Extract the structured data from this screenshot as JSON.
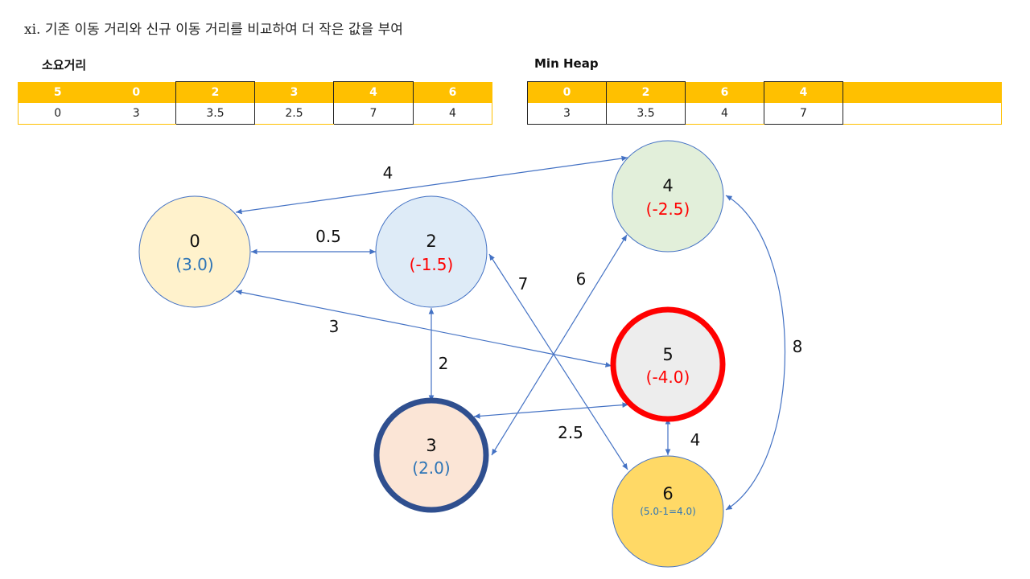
{
  "title": "xi.  기존 이동 거리와 신규 이동 거리를 비교하여 더 작은 값을 부여",
  "distance_table": {
    "label": "소요거리",
    "columns": [
      "5",
      "0",
      "2",
      "3",
      "4",
      "6"
    ],
    "values": [
      "0",
      "3",
      "3.5",
      "2.5",
      "7",
      "4"
    ]
  },
  "heap_table": {
    "label": "Min Heap",
    "columns": [
      "0",
      "2",
      "6",
      "4",
      ""
    ],
    "values": [
      "3",
      "3.5",
      "4",
      "7",
      ""
    ]
  },
  "nodes": {
    "n0": {
      "id": "0",
      "value": "(3.0)"
    },
    "n2": {
      "id": "2",
      "value": "(-1.5)"
    },
    "n4": {
      "id": "4",
      "value": "(-2.5)"
    },
    "n5": {
      "id": "5",
      "value": "(-4.0)"
    },
    "n3": {
      "id": "3",
      "value": "(2.0)"
    },
    "n6": {
      "id": "6",
      "value": "(5.0-1=4.0)"
    }
  },
  "edges": {
    "e0_4": "4",
    "e0_2": "0.5",
    "e2_6": "7",
    "e3_4": "6",
    "e0_5": "3",
    "e2_3": "2",
    "e4_6": "8",
    "e3_5": "2.5",
    "e5_6": "4"
  },
  "colors": {
    "accent": "#FFC000",
    "edge": "#4472C4",
    "positive": "#2E75B6",
    "negative": "#FF0000",
    "current_node_border": "#FF0000",
    "visited_node_border": "#2F4F8F"
  }
}
